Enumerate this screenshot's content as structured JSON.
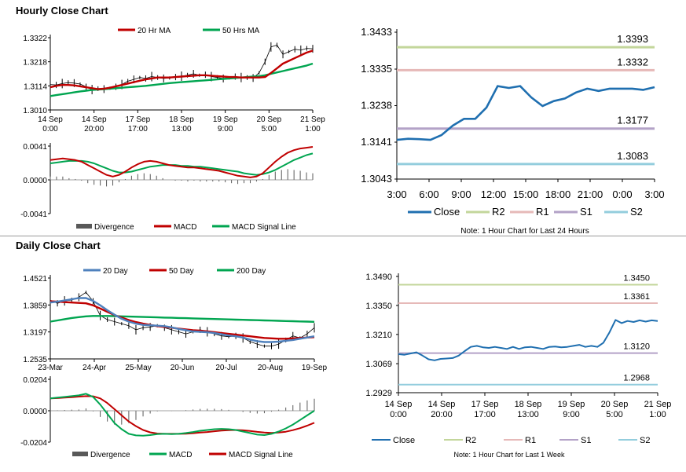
{
  "hourly_section": {
    "title": "Hourly Close Chart"
  },
  "daily_section": {
    "title": "Daily Close Chart"
  },
  "chart_data": [
    {
      "id": "hourly_price",
      "type": "line",
      "title": "",
      "legend": [
        {
          "label": "20 Hr MA",
          "color": "#c00000"
        },
        {
          "label": "50 Hrs MA",
          "color": "#00a550"
        }
      ],
      "y_ticks": [
        "1.3322",
        "1.3218",
        "1.3114",
        "1.3010"
      ],
      "ylim": [
        1.301,
        1.3322
      ],
      "x_ticks": [
        "14 Sep\n0:00",
        "14 Sep\n20:00",
        "17 Sep\n17:00",
        "18 Sep\n13:00",
        "19 Sep\n9:00",
        "20 Sep\n5:00",
        "21 Sep\n1:00"
      ],
      "series": [
        {
          "name": "Price",
          "color": "#000000",
          "values": [
            1.312,
            1.3118,
            1.3124,
            1.3128,
            1.3126,
            1.3122,
            1.311,
            1.3098,
            1.3102,
            1.31,
            1.3104,
            1.311,
            1.312,
            1.3134,
            1.3142,
            1.315,
            1.3146,
            1.3154,
            1.315,
            1.3146,
            1.3148,
            1.3152,
            1.3156,
            1.316,
            1.3166,
            1.316,
            1.3162,
            1.3154,
            1.315,
            1.3146,
            1.3148,
            1.3154,
            1.315,
            1.315,
            1.3148,
            1.317,
            1.3218,
            1.3282,
            1.329,
            1.325,
            1.3262,
            1.3272,
            1.3268,
            1.3276,
            1.3274
          ]
        },
        {
          "name": "20 Hr MA",
          "color": "#c00000",
          "values": [
            1.3108,
            1.3114,
            1.3118,
            1.3118,
            1.3116,
            1.3112,
            1.3108,
            1.3104,
            1.31,
            1.3102,
            1.3106,
            1.3112,
            1.3118,
            1.3124,
            1.313,
            1.3136,
            1.3142,
            1.3146,
            1.315,
            1.315,
            1.315,
            1.3152,
            1.3154,
            1.3156,
            1.3158,
            1.316,
            1.316,
            1.3158,
            1.3156,
            1.3154,
            1.3152,
            1.3152,
            1.315,
            1.315,
            1.315,
            1.315,
            1.3152,
            1.317,
            1.319,
            1.321,
            1.3222,
            1.3234,
            1.3246,
            1.3258,
            1.3266
          ]
        },
        {
          "name": "50 Hrs MA",
          "color": "#00a550",
          "values": [
            1.307,
            1.3074,
            1.3078,
            1.3082,
            1.3086,
            1.309,
            1.3093,
            1.3096,
            1.3098,
            1.31,
            1.3102,
            1.3104,
            1.3106,
            1.3108,
            1.311,
            1.3112,
            1.3114,
            1.3117,
            1.312,
            1.3123,
            1.3126,
            1.3128,
            1.313,
            1.3132,
            1.3134,
            1.3136,
            1.3138,
            1.314,
            1.3142,
            1.3144,
            1.3146,
            1.3148,
            1.315,
            1.3152,
            1.3154,
            1.3156,
            1.316,
            1.3166,
            1.3172,
            1.3178,
            1.3184,
            1.319,
            1.3196,
            1.3202,
            1.321
          ]
        }
      ]
    },
    {
      "id": "hourly_macd",
      "type": "line",
      "legend": [
        {
          "label": "Divergence",
          "color": "#595959"
        },
        {
          "label": "MACD",
          "color": "#c00000"
        },
        {
          "label": "MACD Signal Line",
          "color": "#00a550"
        }
      ],
      "y_ticks": [
        "0.0041",
        "0.0000",
        "-0.0041"
      ],
      "ylim": [
        -0.0041,
        0.0041
      ],
      "series": [
        {
          "name": "MACD",
          "color": "#c00000",
          "values": [
            0.0024,
            0.0025,
            0.0026,
            0.0025,
            0.0024,
            0.0022,
            0.0018,
            0.0014,
            0.001,
            0.0006,
            0.0004,
            0.0006,
            0.001,
            0.0015,
            0.0019,
            0.0022,
            0.0023,
            0.0022,
            0.002,
            0.0018,
            0.0017,
            0.0016,
            0.0015,
            0.0015,
            0.0014,
            0.0013,
            0.0012,
            0.0011,
            0.0009,
            0.0007,
            0.0005,
            0.0004,
            0.0003,
            0.0004,
            0.0008,
            0.0015,
            0.0022,
            0.0028,
            0.0033,
            0.0036,
            0.0038,
            0.0039,
            0.004
          ]
        },
        {
          "name": "MACD Signal Line",
          "color": "#00a550",
          "values": [
            0.002,
            0.0021,
            0.0022,
            0.0023,
            0.0023,
            0.0023,
            0.0022,
            0.002,
            0.0017,
            0.0014,
            0.0011,
            0.0009,
            0.0009,
            0.001,
            0.0012,
            0.0014,
            0.0016,
            0.0017,
            0.0018,
            0.0018,
            0.0018,
            0.0017,
            0.0017,
            0.0016,
            0.0016,
            0.0015,
            0.0014,
            0.0013,
            0.0012,
            0.0011,
            0.001,
            0.0008,
            0.0007,
            0.0006,
            0.0007,
            0.0009,
            0.0012,
            0.0016,
            0.002,
            0.0024,
            0.0027,
            0.003,
            0.0032
          ]
        },
        {
          "name": "Divergence",
          "color": "#595959",
          "type": "bar",
          "values": [
            0.0004,
            0.0004,
            0.0004,
            0.0002,
            0.0001,
            -0.0001,
            -0.0004,
            -0.0006,
            -0.0007,
            -0.0008,
            -0.0007,
            -0.0003,
            0.0001,
            0.0005,
            0.0007,
            0.0008,
            0.0007,
            0.0005,
            0.0002,
            0.0,
            -0.0001,
            -0.0001,
            -0.0002,
            -0.0001,
            -0.0002,
            -0.0002,
            -0.0002,
            -0.0002,
            -0.0003,
            -0.0004,
            -0.0005,
            -0.0004,
            -0.0004,
            -0.0002,
            0.0001,
            0.0006,
            0.001,
            0.0012,
            0.0013,
            0.0012,
            0.0011,
            0.0009,
            0.0008
          ]
        }
      ]
    },
    {
      "id": "hourly_pivot",
      "type": "line",
      "y_ticks": [
        "1.3433",
        "1.3335",
        "1.3238",
        "1.3141",
        "1.3043"
      ],
      "ylim": [
        1.3043,
        1.3433
      ],
      "x_ticks": [
        "3:00",
        "6:00",
        "9:00",
        "12:00",
        "15:00",
        "18:00",
        "21:00",
        "0:00",
        "3:00"
      ],
      "levels": [
        {
          "name": "R2",
          "value": 1.3393,
          "label": "1.3393",
          "color": "#c3d69b"
        },
        {
          "name": "R1",
          "value": 1.3332,
          "label": "1.3332",
          "color": "#e6b9b8"
        },
        {
          "name": "S1",
          "value": 1.3177,
          "label": "1.3177",
          "color": "#b3a2c7"
        },
        {
          "name": "S2",
          "value": 1.3083,
          "label": "1.3083",
          "color": "#93cddd"
        }
      ],
      "series": [
        {
          "name": "Close",
          "color": "#1f6fb0",
          "values": [
            1.3147,
            1.315,
            1.3149,
            1.3147,
            1.316,
            1.3185,
            1.3203,
            1.3203,
            1.3233,
            1.329,
            1.3285,
            1.329,
            1.326,
            1.3237,
            1.325,
            1.3257,
            1.3273,
            1.3283,
            1.3277,
            1.3283,
            1.3283,
            1.3283,
            1.328,
            1.3287
          ]
        }
      ],
      "legend": [
        "Close",
        "R2",
        "R1",
        "S1",
        "S2"
      ],
      "note": "Note: 1 Hour Chart for Last 24 Hours"
    },
    {
      "id": "daily_price",
      "type": "line",
      "legend": [
        {
          "label": "20 Day",
          "color": "#4f81bd"
        },
        {
          "label": "50 Day",
          "color": "#c00000"
        },
        {
          "label": "200 Day",
          "color": "#00a550"
        }
      ],
      "y_ticks": [
        "1.4521",
        "1.3859",
        "1.3197",
        "1.2535"
      ],
      "ylim": [
        1.2535,
        1.4521
      ],
      "x_ticks": [
        "23-Mar",
        "24-Apr",
        "25-May",
        "20-Jun",
        "20-Jul",
        "20-Aug",
        "19-Sep"
      ],
      "series": [
        {
          "name": "Price",
          "color": "#000000",
          "values": [
            1.398,
            1.39,
            1.396,
            1.398,
            1.405,
            1.417,
            1.395,
            1.36,
            1.35,
            1.345,
            1.34,
            1.335,
            1.325,
            1.33,
            1.332,
            1.335,
            1.33,
            1.325,
            1.32,
            1.315,
            1.32,
            1.325,
            1.32,
            1.315,
            1.31,
            1.308,
            1.31,
            1.305,
            1.296,
            1.29,
            1.285,
            1.285,
            1.29,
            1.3,
            1.31,
            1.305,
            1.315,
            1.33
          ]
        },
        {
          "name": "20 Day",
          "color": "#4f81bd",
          "values": [
            1.392,
            1.394,
            1.397,
            1.4,
            1.403,
            1.403,
            1.396,
            1.385,
            1.373,
            1.362,
            1.352,
            1.345,
            1.34,
            1.337,
            1.336,
            1.335,
            1.334,
            1.331,
            1.327,
            1.324,
            1.321,
            1.32,
            1.319,
            1.317,
            1.314,
            1.311,
            1.309,
            1.306,
            1.301,
            1.297,
            1.295,
            1.295,
            1.296,
            1.298,
            1.3,
            1.303,
            1.306,
            1.309
          ]
        },
        {
          "name": "50 Day",
          "color": "#c00000",
          "values": [
            1.395,
            1.394,
            1.393,
            1.392,
            1.391,
            1.39,
            1.385,
            1.377,
            1.369,
            1.361,
            1.355,
            1.349,
            1.344,
            1.34,
            1.337,
            1.334,
            1.332,
            1.33,
            1.328,
            1.326,
            1.324,
            1.323,
            1.321,
            1.319,
            1.317,
            1.315,
            1.313,
            1.311,
            1.309,
            1.307,
            1.305,
            1.304,
            1.303,
            1.303,
            1.304,
            1.305,
            1.306,
            1.307
          ]
        },
        {
          "name": "200 Day",
          "color": "#00a550",
          "values": [
            1.345,
            1.348,
            1.351,
            1.354,
            1.356,
            1.358,
            1.359,
            1.359,
            1.359,
            1.3585,
            1.358,
            1.3575,
            1.357,
            1.3565,
            1.356,
            1.3555,
            1.355,
            1.3545,
            1.354,
            1.3535,
            1.353,
            1.3525,
            1.352,
            1.3515,
            1.351,
            1.3505,
            1.35,
            1.3495,
            1.349,
            1.3485,
            1.348,
            1.3475,
            1.347,
            1.3465,
            1.346,
            1.3455,
            1.345,
            1.3445
          ]
        }
      ]
    },
    {
      "id": "daily_macd",
      "type": "line",
      "legend": [
        {
          "label": "Divergence",
          "color": "#595959"
        },
        {
          "label": "MACD",
          "color": "#00a550"
        },
        {
          "label": "MACD Signal Line",
          "color": "#c00000"
        }
      ],
      "y_ticks": [
        "0.0204",
        "0.0000",
        "-0.0204"
      ],
      "ylim": [
        -0.0204,
        0.0204
      ],
      "series": [
        {
          "name": "MACD",
          "color": "#00a550",
          "values": [
            0.008,
            0.0085,
            0.009,
            0.0095,
            0.01,
            0.011,
            0.009,
            0.004,
            -0.002,
            -0.008,
            -0.012,
            -0.015,
            -0.016,
            -0.0162,
            -0.0158,
            -0.0152,
            -0.015,
            -0.0152,
            -0.015,
            -0.0145,
            -0.0138,
            -0.013,
            -0.0125,
            -0.012,
            -0.0118,
            -0.012,
            -0.0125,
            -0.0135,
            -0.0145,
            -0.0155,
            -0.0158,
            -0.015,
            -0.0135,
            -0.0115,
            -0.009,
            -0.006,
            -0.003,
            0.0
          ]
        },
        {
          "name": "MACD Signal Line",
          "color": "#c00000",
          "values": [
            0.008,
            0.0082,
            0.0085,
            0.0088,
            0.0092,
            0.0095,
            0.0094,
            0.008,
            0.005,
            0.001,
            -0.003,
            -0.007,
            -0.01,
            -0.0125,
            -0.014,
            -0.0148,
            -0.015,
            -0.015,
            -0.015,
            -0.0149,
            -0.0146,
            -0.0142,
            -0.0138,
            -0.0133,
            -0.0129,
            -0.0126,
            -0.0125,
            -0.0127,
            -0.0131,
            -0.0137,
            -0.0142,
            -0.0144,
            -0.0142,
            -0.0136,
            -0.0126,
            -0.0113,
            -0.0097,
            -0.0078
          ]
        },
        {
          "name": "Divergence",
          "color": "#595959",
          "type": "bar",
          "values": [
            0.0,
            0.0003,
            0.0005,
            0.0007,
            0.0008,
            0.0015,
            -0.0004,
            -0.004,
            -0.007,
            -0.009,
            -0.009,
            -0.008,
            -0.006,
            -0.0037,
            -0.0018,
            -0.0004,
            0.0,
            -0.0002,
            0.0,
            0.0004,
            0.0008,
            0.0012,
            0.0013,
            0.0013,
            0.0011,
            0.0006,
            0.0,
            -0.0008,
            -0.0014,
            -0.0018,
            -0.0016,
            -0.0006,
            0.0007,
            0.0021,
            0.0036,
            0.0053,
            0.0067,
            0.0078
          ]
        }
      ]
    },
    {
      "id": "daily_pivot",
      "type": "line",
      "y_ticks": [
        "1.3490",
        "1.3350",
        "1.3210",
        "1.3069",
        "1.2929"
      ],
      "ylim": [
        1.2929,
        1.349
      ],
      "x_ticks": [
        "14 Sep\n0:00",
        "14 Sep\n20:00",
        "17 Sep\n17:00",
        "18 Sep\n13:00",
        "19 Sep\n9:00",
        "20 Sep\n5:00",
        "21 Sep\n1:00"
      ],
      "levels": [
        {
          "name": "R2",
          "value": 1.345,
          "label": "1.3450",
          "color": "#c3d69b"
        },
        {
          "name": "R1",
          "value": 1.3361,
          "label": "1.3361",
          "color": "#e6b9b8"
        },
        {
          "name": "S1",
          "value": 1.312,
          "label": "1.3120",
          "color": "#b3a2c7"
        },
        {
          "name": "S2",
          "value": 1.2968,
          "label": "1.2968",
          "color": "#93cddd"
        }
      ],
      "series": [
        {
          "name": "Close",
          "color": "#1f6fb0",
          "values": [
            1.3115,
            1.3112,
            1.3118,
            1.3124,
            1.3108,
            1.309,
            1.3085,
            1.3092,
            1.3094,
            1.3096,
            1.3108,
            1.313,
            1.315,
            1.3155,
            1.3148,
            1.3145,
            1.315,
            1.3145,
            1.314,
            1.315,
            1.314,
            1.3148,
            1.315,
            1.3145,
            1.314,
            1.315,
            1.3152,
            1.3148,
            1.315,
            1.3155,
            1.316,
            1.315,
            1.3155,
            1.315,
            1.317,
            1.322,
            1.328,
            1.3265,
            1.3275,
            1.327,
            1.3278,
            1.3272,
            1.3278,
            1.3275
          ]
        }
      ],
      "legend": [
        "Close",
        "R2",
        "R1",
        "S1",
        "S2"
      ],
      "note": "Note: 1 Hour Chart for Last 1 Week"
    }
  ]
}
